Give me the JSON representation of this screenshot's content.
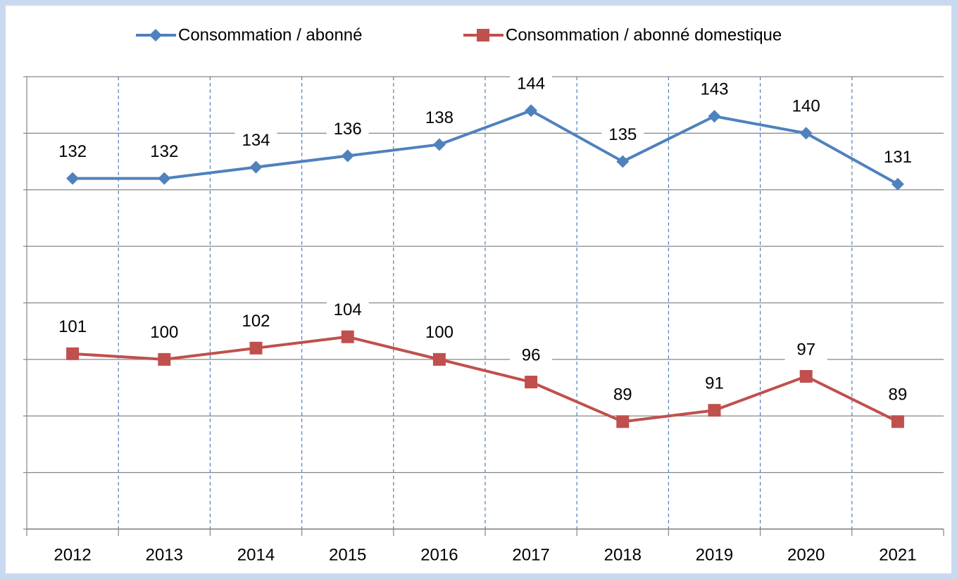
{
  "chart_data": {
    "type": "line",
    "categories": [
      "2012",
      "2013",
      "2014",
      "2015",
      "2016",
      "2017",
      "2018",
      "2019",
      "2020",
      "2021"
    ],
    "series": [
      {
        "name": "Consommation / abonné",
        "color": "#4f81bd",
        "marker": "diamond",
        "values": [
          132,
          132,
          134,
          136,
          138,
          144,
          135,
          143,
          140,
          131
        ]
      },
      {
        "name": "Consommation / abonné domestique",
        "color": "#c0504d",
        "marker": "square",
        "values": [
          101,
          100,
          102,
          104,
          100,
          96,
          89,
          91,
          97,
          89
        ]
      }
    ],
    "ylim": [
      70,
      150
    ],
    "yticks": [
      70,
      80,
      90,
      100,
      110,
      120,
      130,
      140,
      150
    ],
    "grid": true,
    "legend": "top"
  }
}
